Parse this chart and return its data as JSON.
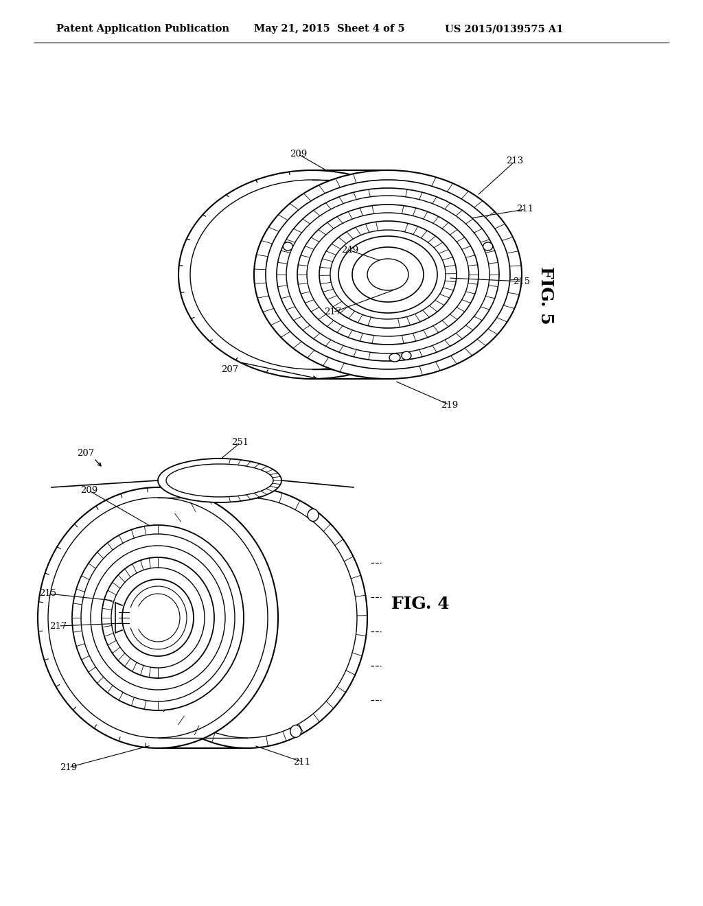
{
  "background_color": "#ffffff",
  "header_left": "Patent Application Publication",
  "header_mid": "May 21, 2015  Sheet 4 of 5",
  "header_right": "US 2015/0139575 A1",
  "header_fontsize": 10.5,
  "fig5_label": "FIG. 5",
  "fig4_label": "FIG. 4",
  "line_color": "#000000",
  "text_color": "#000000"
}
